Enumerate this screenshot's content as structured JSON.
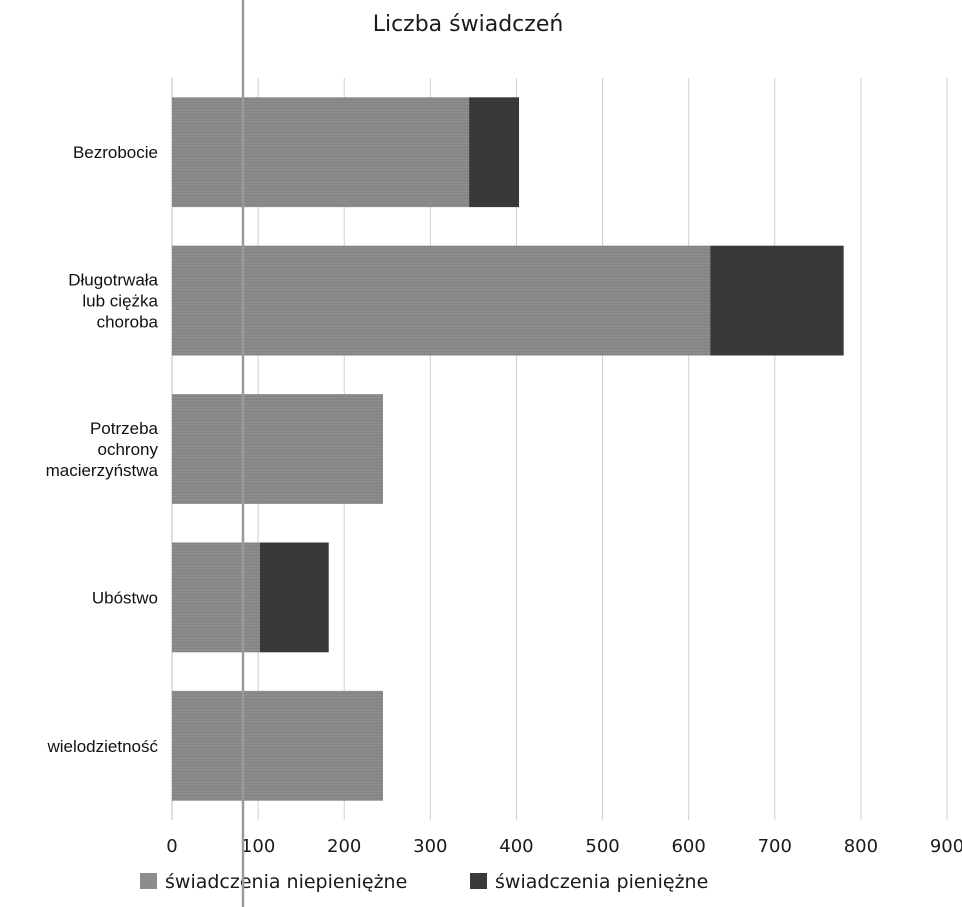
{
  "chart_data": {
    "type": "bar",
    "orientation": "horizontal",
    "stacked": true,
    "title": "Liczba świadczeń",
    "categories": [
      "Bezrobocie",
      "Długotrwała lub ciężka choroba",
      "Potrzeba ochrony macierzyństwa",
      "Ubóstwo",
      "wielodzietność"
    ],
    "category_label_lines": [
      [
        "Bezrobocie"
      ],
      [
        "Długotrwała",
        "lub ciężka",
        "choroba"
      ],
      [
        "Potrzeba",
        "ochrony",
        "macierzyństwa"
      ],
      [
        "Ubóstwo"
      ],
      [
        "wielodzietność"
      ]
    ],
    "series": [
      {
        "name": "świadczenia niepieniężne",
        "color": "#8c8c8c",
        "values": [
          345,
          625,
          245,
          102,
          245
        ]
      },
      {
        "name": "świadczenia pieniężne",
        "color": "#3a3a3a",
        "values": [
          58,
          155,
          0,
          80,
          0
        ]
      }
    ],
    "xlim": [
      0,
      900
    ],
    "xticks": [
      "0",
      "100",
      "200",
      "300",
      "400",
      "500",
      "600",
      "700",
      "800",
      "900"
    ],
    "xlabel": "",
    "ylabel": "",
    "grid": "vertical",
    "legend_position": "bottom"
  }
}
